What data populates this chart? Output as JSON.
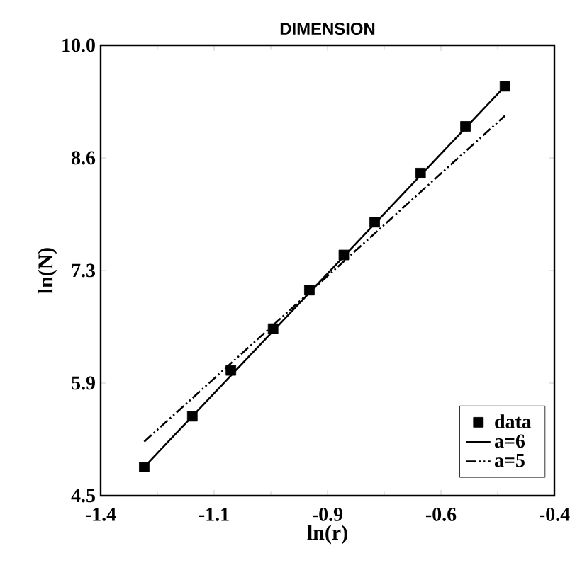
{
  "chart_data": {
    "type": "scatter",
    "title": "DIMENSION",
    "xlabel": "ln(r)",
    "ylabel": "ln(N)",
    "xlim": [
      -1.4,
      -0.4
    ],
    "ylim": [
      4.5,
      10.0
    ],
    "xticks": [
      -1.4,
      {
        "value": -1.15,
        "label": "-1.1"
      },
      -0.9,
      {
        "value": -0.65,
        "label": "-0.6"
      },
      -0.4
    ],
    "yticks": [
      4.5,
      {
        "value": 5.875,
        "label": "5.9"
      },
      {
        "value": 7.25,
        "label": "7.3"
      },
      {
        "value": 8.625,
        "label": "8.6"
      },
      {
        "value": 10.0,
        "label": "10.0"
      }
    ],
    "legend": "bottom right",
    "grid": false,
    "series": [
      {
        "name": "data",
        "marker": "square",
        "color": "#000000",
        "x": [
          -1.304,
          -1.198,
          -1.113,
          -1.02,
          -0.94,
          -0.864,
          -0.796,
          -0.695,
          -0.596,
          -0.509
        ],
        "values": [
          4.85,
          5.47,
          6.03,
          6.54,
          7.01,
          7.44,
          7.84,
          8.44,
          9.01,
          9.5
        ]
      },
      {
        "name": "a=6",
        "type": "line",
        "line_style": "solid",
        "color": "#000000",
        "x": [
          -1.304,
          -0.509
        ],
        "values": [
          4.85,
          9.5
        ]
      },
      {
        "name": "a=5",
        "type": "line",
        "line_style": "dashed",
        "color": "#000000",
        "x": [
          -1.304,
          -0.509
        ],
        "values": [
          5.16,
          9.14
        ]
      }
    ]
  }
}
